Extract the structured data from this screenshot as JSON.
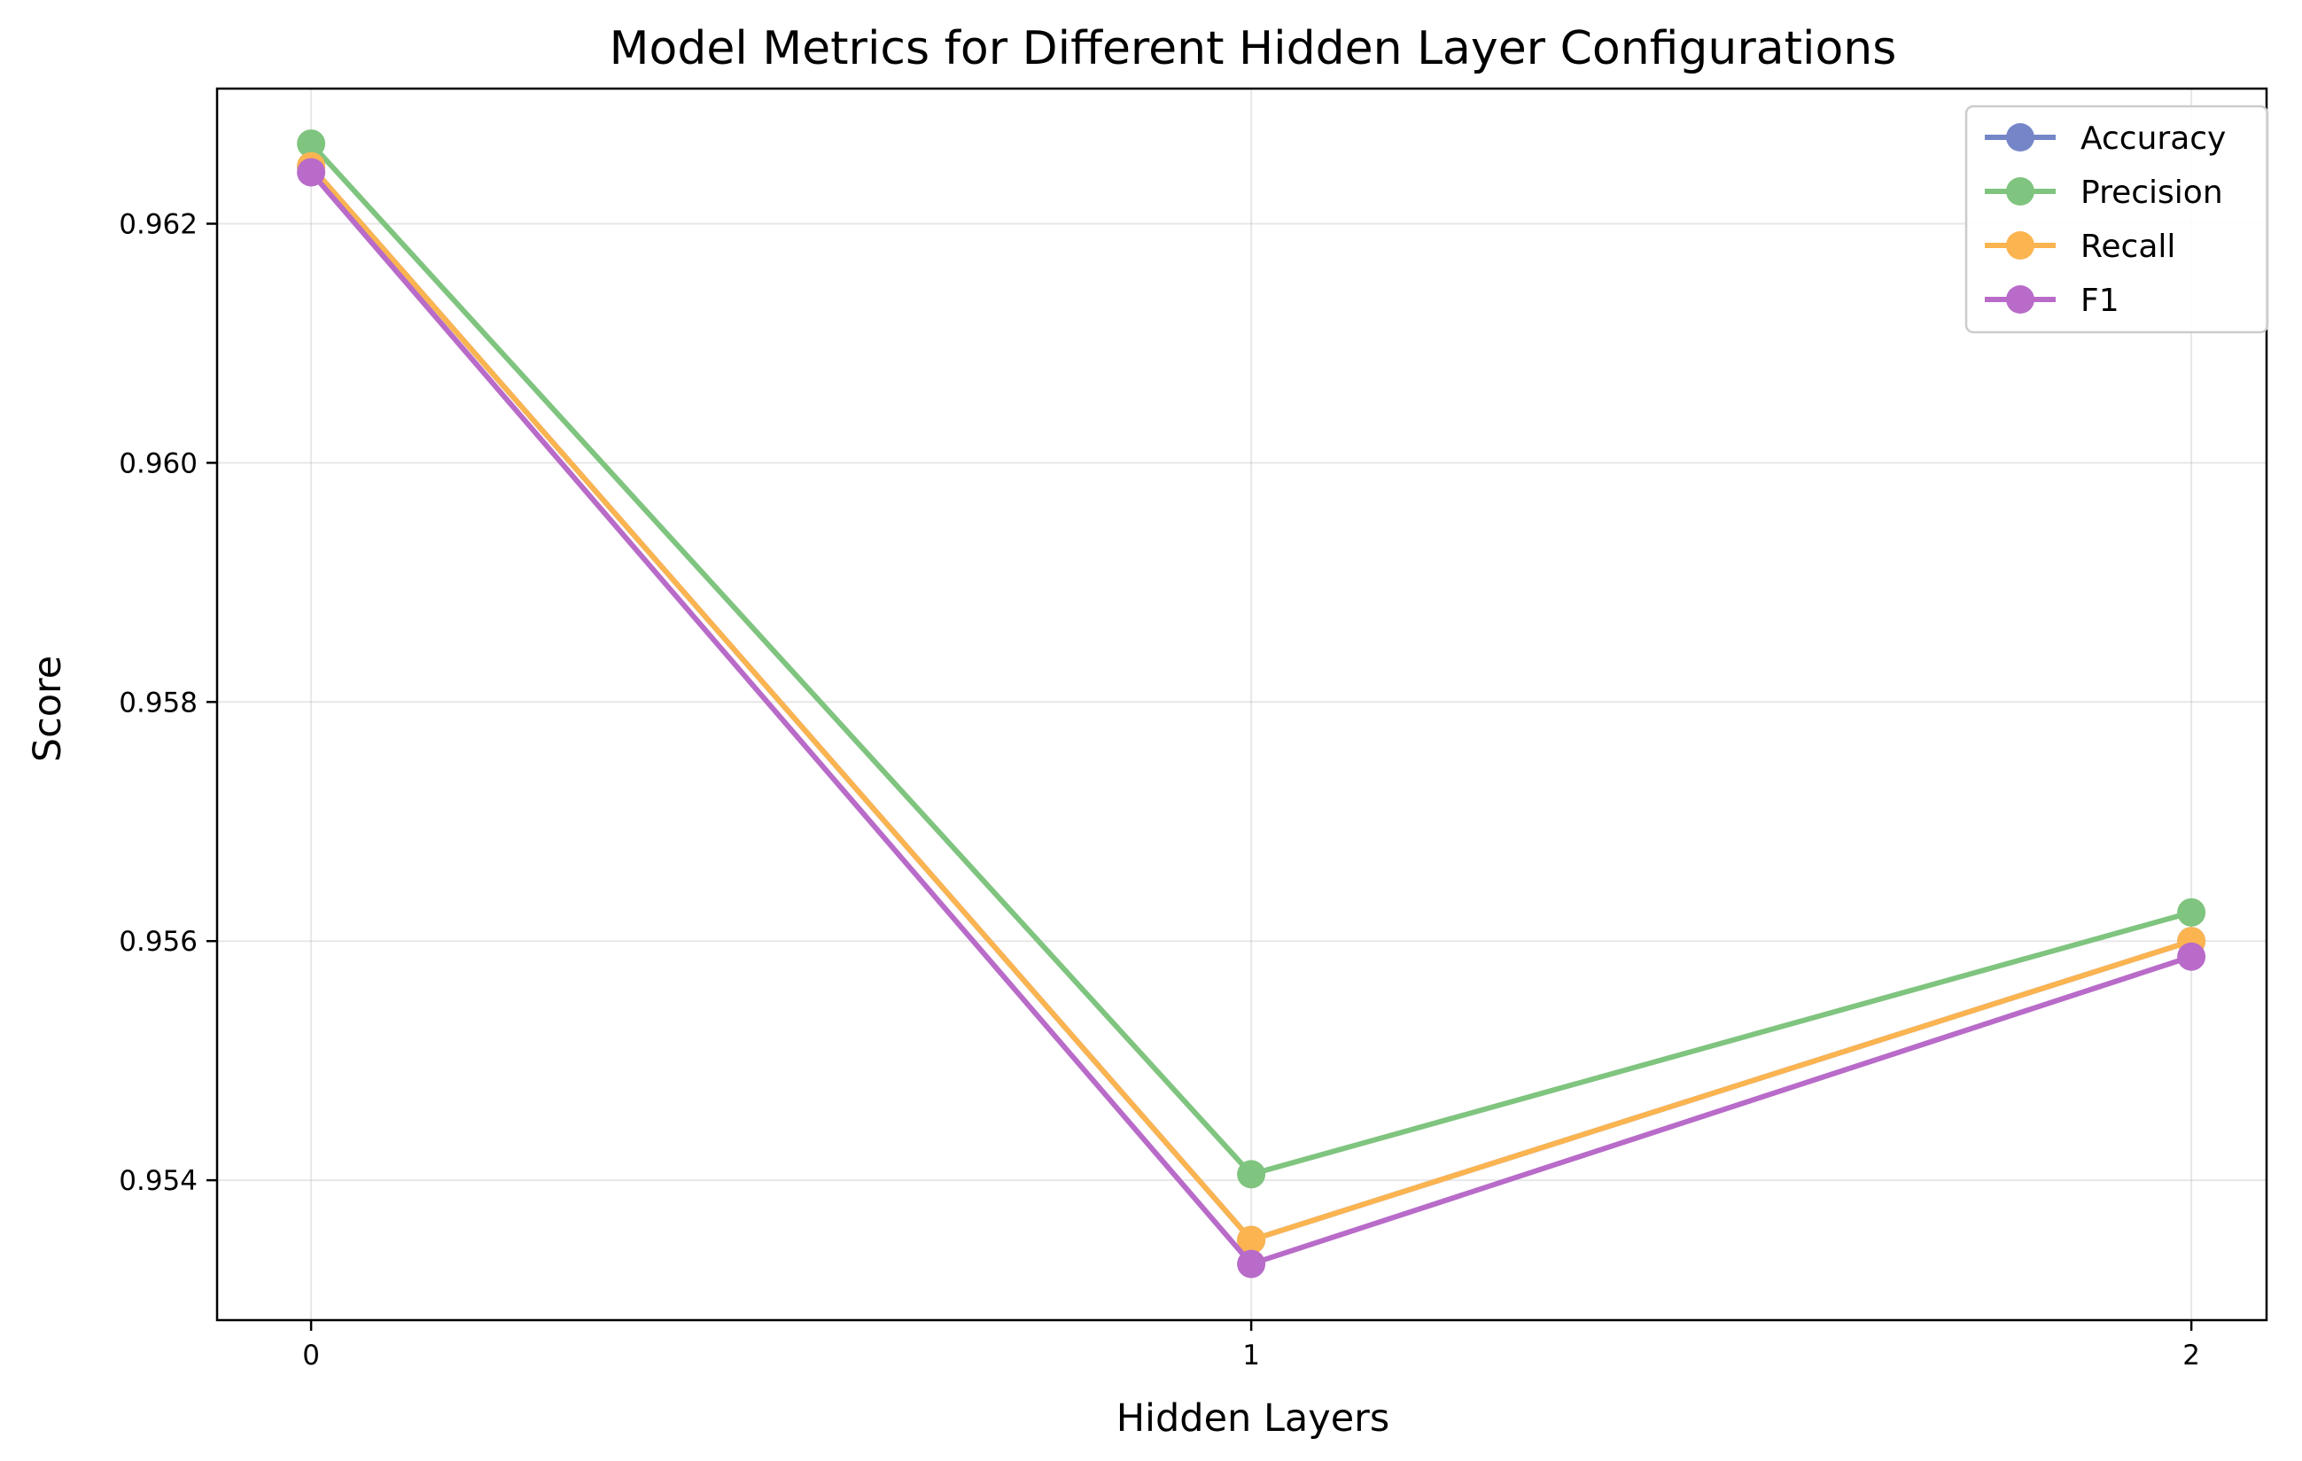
{
  "chart_data": {
    "type": "line",
    "title": "Model Metrics for Different Hidden Layer Configurations",
    "xlabel": "Hidden Layers",
    "ylabel": "Score",
    "x": [
      0,
      1,
      2
    ],
    "x_tick_labels": [
      "0",
      "1",
      "2"
    ],
    "xlim": [
      -0.1,
      2.08
    ],
    "ylim": [
      0.95283,
      0.96313
    ],
    "y_ticks": [
      0.954,
      0.956,
      0.958,
      0.96,
      0.962
    ],
    "y_tick_labels": [
      "0.954",
      "0.956",
      "0.958",
      "0.960",
      "0.962"
    ],
    "grid": true,
    "legend_position": "top-right",
    "series": [
      {
        "name": "Accuracy",
        "color": "#7586c8",
        "values": [
          0.96248,
          0.9535,
          0.956
        ]
      },
      {
        "name": "Precision",
        "color": "#7fc47f",
        "values": [
          0.96267,
          0.95405,
          0.95624
        ]
      },
      {
        "name": "Recall",
        "color": "#fbb450",
        "values": [
          0.96248,
          0.9535,
          0.956
        ]
      },
      {
        "name": "F1",
        "color": "#b86bc8",
        "values": [
          0.96243,
          0.9533,
          0.95587
        ]
      }
    ]
  }
}
